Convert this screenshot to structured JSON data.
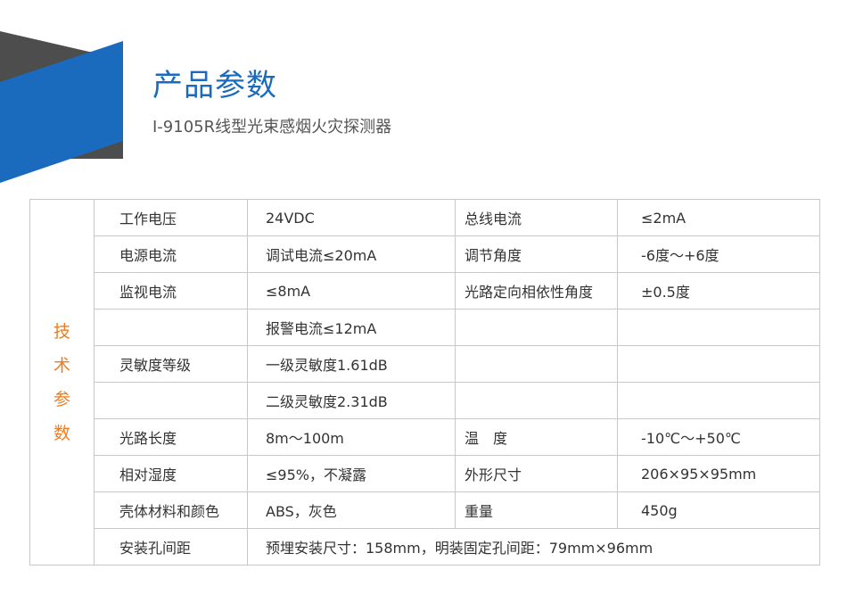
{
  "header": {
    "title": "产品参数",
    "subtitle": "I-9105R线型光束感烟火灾探测器",
    "colors": {
      "accent_blue": "#1a6bbd",
      "dark_gray": "#4d4d4d",
      "side_label": "#ee7d20"
    }
  },
  "table": {
    "side_label": [
      "技",
      "术",
      "参",
      "数"
    ],
    "rows": [
      [
        "工作电压",
        "24VDC",
        "总线电流",
        "≤2mA"
      ],
      [
        "电源电流",
        "调试电流≤20mA",
        "调节角度",
        "-6度～+6度"
      ],
      [
        "监视电流",
        "≤8mA",
        "光路定向相依性角度",
        "±0.5度"
      ],
      [
        "",
        "报警电流≤12mA",
        "",
        ""
      ],
      [
        "灵敏度等级",
        "一级灵敏度1.61dB",
        "",
        ""
      ],
      [
        "",
        "二级灵敏度2.31dB",
        "",
        ""
      ],
      [
        "光路长度",
        "8m～100m",
        "温　度",
        "-10℃～+50℃"
      ],
      [
        "相对湿度",
        "≤95%，不凝露",
        "外形尺寸",
        "206×95×95mm"
      ],
      [
        "壳体材料和颜色",
        "ABS，灰色",
        "重量",
        "450g"
      ]
    ],
    "last_row": [
      "安装孔间距",
      "预埋安装尺寸：158mm，明装固定孔间距：79mm×96mm"
    ]
  }
}
